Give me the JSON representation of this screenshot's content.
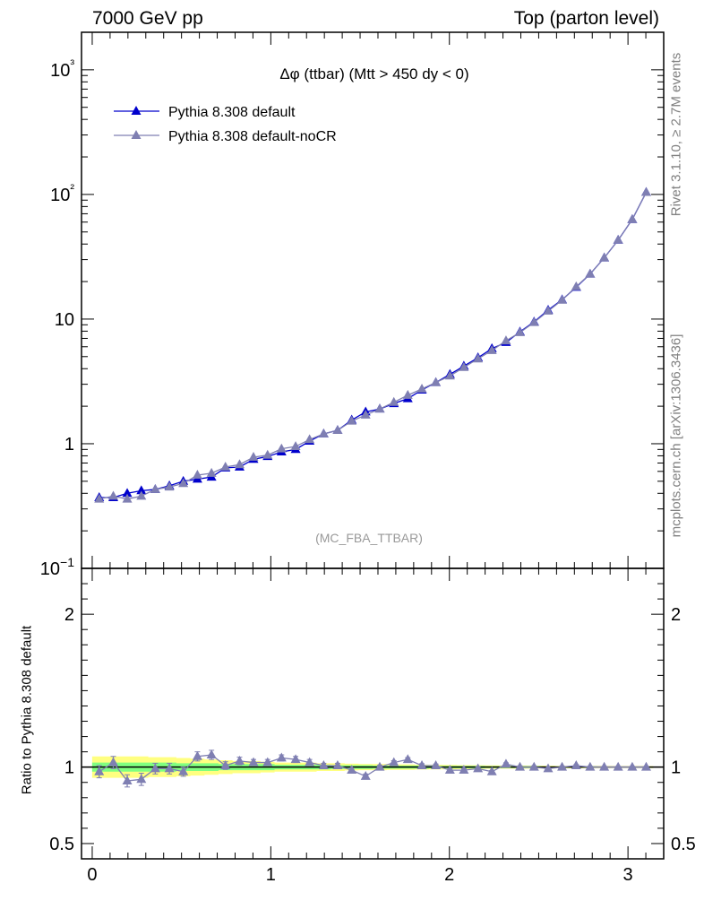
{
  "header": {
    "left": "7000 GeV pp",
    "right": "Top (parton level)"
  },
  "side_labels": {
    "rivet": "Rivet 3.1.10, ≥ 2.7M events",
    "source": "mcplots.cern.ch [arXiv:1306.3436]"
  },
  "colors": {
    "default": "#0000cc",
    "noCR": "#7f7fb2",
    "band_inner": "#80ff80",
    "band_outer": "#ffff80"
  },
  "chart_data": [
    {
      "type": "line",
      "title": "Δφ (ttbar) (Mtt > 450 dy < 0)",
      "watermark": "(MC_FBA_TTBAR)",
      "yscale": "log",
      "ylim": [
        0.1,
        2000
      ],
      "xlim": [
        -0.06,
        3.2
      ],
      "y_tick_labels": [
        "10−1",
        "1",
        "10",
        "10²",
        "10³"
      ],
      "legend_position": "top-left",
      "x": [
        0.039,
        0.118,
        0.196,
        0.275,
        0.353,
        0.432,
        0.51,
        0.589,
        0.668,
        0.746,
        0.825,
        0.903,
        0.982,
        1.06,
        1.139,
        1.217,
        1.296,
        1.374,
        1.453,
        1.531,
        1.61,
        1.689,
        1.767,
        1.846,
        1.924,
        2.003,
        2.081,
        2.16,
        2.238,
        2.317,
        2.395,
        2.474,
        2.553,
        2.631,
        2.71,
        2.788,
        2.867,
        2.945,
        3.024,
        3.102
      ],
      "series": [
        {
          "name": "Pythia 8.308 default",
          "color": "#0000cc",
          "values": [
            0.37,
            0.37,
            0.4,
            0.42,
            0.43,
            0.46,
            0.5,
            0.52,
            0.54,
            0.64,
            0.65,
            0.75,
            0.79,
            0.86,
            0.9,
            1.05,
            1.2,
            1.28,
            1.55,
            1.8,
            1.9,
            2.1,
            2.3,
            2.7,
            3.1,
            3.6,
            4.2,
            4.9,
            5.8,
            6.5,
            7.9,
            9.5,
            11.8,
            14.3,
            18.0,
            23.0,
            31.0,
            43.0,
            63.0,
            104.0
          ]
        },
        {
          "name": "Pythia 8.308 default-noCR",
          "color": "#7f7fb2",
          "values": [
            0.36,
            0.38,
            0.36,
            0.38,
            0.43,
            0.45,
            0.48,
            0.56,
            0.58,
            0.65,
            0.68,
            0.78,
            0.81,
            0.91,
            0.95,
            1.08,
            1.2,
            1.28,
            1.52,
            1.7,
            1.9,
            2.15,
            2.45,
            2.75,
            3.1,
            3.5,
            4.1,
            4.8,
            5.6,
            6.7,
            7.8,
            9.4,
            11.6,
            14.2,
            18.2,
            23.0,
            31.0,
            43.0,
            63.0,
            104.0
          ]
        }
      ]
    },
    {
      "type": "line",
      "ylabel": "Ratio to Pythia 8.308 default",
      "ylim": [
        0.4,
        2.3
      ],
      "xlim": [
        -0.06,
        3.2
      ],
      "x_tick_labels": [
        "0",
        "1",
        "2",
        "3"
      ],
      "y_tick_labels": [
        "0.5",
        "1",
        "2"
      ],
      "series": [
        {
          "name": "Pythia 8.308 default-noCR",
          "color": "#7f7fb2",
          "values": [
            0.97,
            1.03,
            0.91,
            0.92,
            0.99,
            0.99,
            0.97,
            1.07,
            1.08,
            1.01,
            1.04,
            1.03,
            1.03,
            1.06,
            1.05,
            1.03,
            1.01,
            1.01,
            0.98,
            0.94,
            1.0,
            1.03,
            1.05,
            1.01,
            1.01,
            0.98,
            0.98,
            0.99,
            0.97,
            1.02,
            1.0,
            1.0,
            0.99,
            1.0,
            1.01,
            1.0,
            1.0,
            1.0,
            1.0,
            1.0
          ],
          "errors": [
            0.04,
            0.04,
            0.04,
            0.04,
            0.035,
            0.035,
            0.03,
            0.03,
            0.03,
            0.025,
            0.025,
            0.02,
            0.02,
            0.02,
            0.02,
            0.02,
            0.015,
            0.015,
            0.015,
            0.015,
            0.012,
            0.012,
            0.012,
            0.012,
            0.01,
            0.01,
            0.01,
            0.01,
            0.008,
            0.008,
            0.008,
            0.008,
            0.006,
            0.006,
            0.006,
            0.006,
            0.005,
            0.005,
            0.005,
            0.005
          ]
        }
      ],
      "band_inner_halfwidth": [
        0.03,
        0.03,
        0.03,
        0.03,
        0.03,
        0.03,
        0.025,
        0.025,
        0.025,
        0.02,
        0.02,
        0.02,
        0.02,
        0.015,
        0.015,
        0.015,
        0.015,
        0.012,
        0.012,
        0.012,
        0.01,
        0.01,
        0.01,
        0.01,
        0.008,
        0.008,
        0.008,
        0.008,
        0.006,
        0.006,
        0.006,
        0.006,
        0.005,
        0.005,
        0.005,
        0.005,
        0.004,
        0.004,
        0.004,
        0.004
      ],
      "band_outer_halfwidth": [
        0.07,
        0.07,
        0.07,
        0.07,
        0.065,
        0.065,
        0.06,
        0.055,
        0.05,
        0.045,
        0.04,
        0.04,
        0.035,
        0.03,
        0.03,
        0.03,
        0.025,
        0.025,
        0.022,
        0.02,
        0.02,
        0.018,
        0.018,
        0.016,
        0.015,
        0.014,
        0.013,
        0.012,
        0.011,
        0.01,
        0.01,
        0.009,
        0.009,
        0.008,
        0.008,
        0.007,
        0.007,
        0.006,
        0.006,
        0.006
      ]
    }
  ]
}
